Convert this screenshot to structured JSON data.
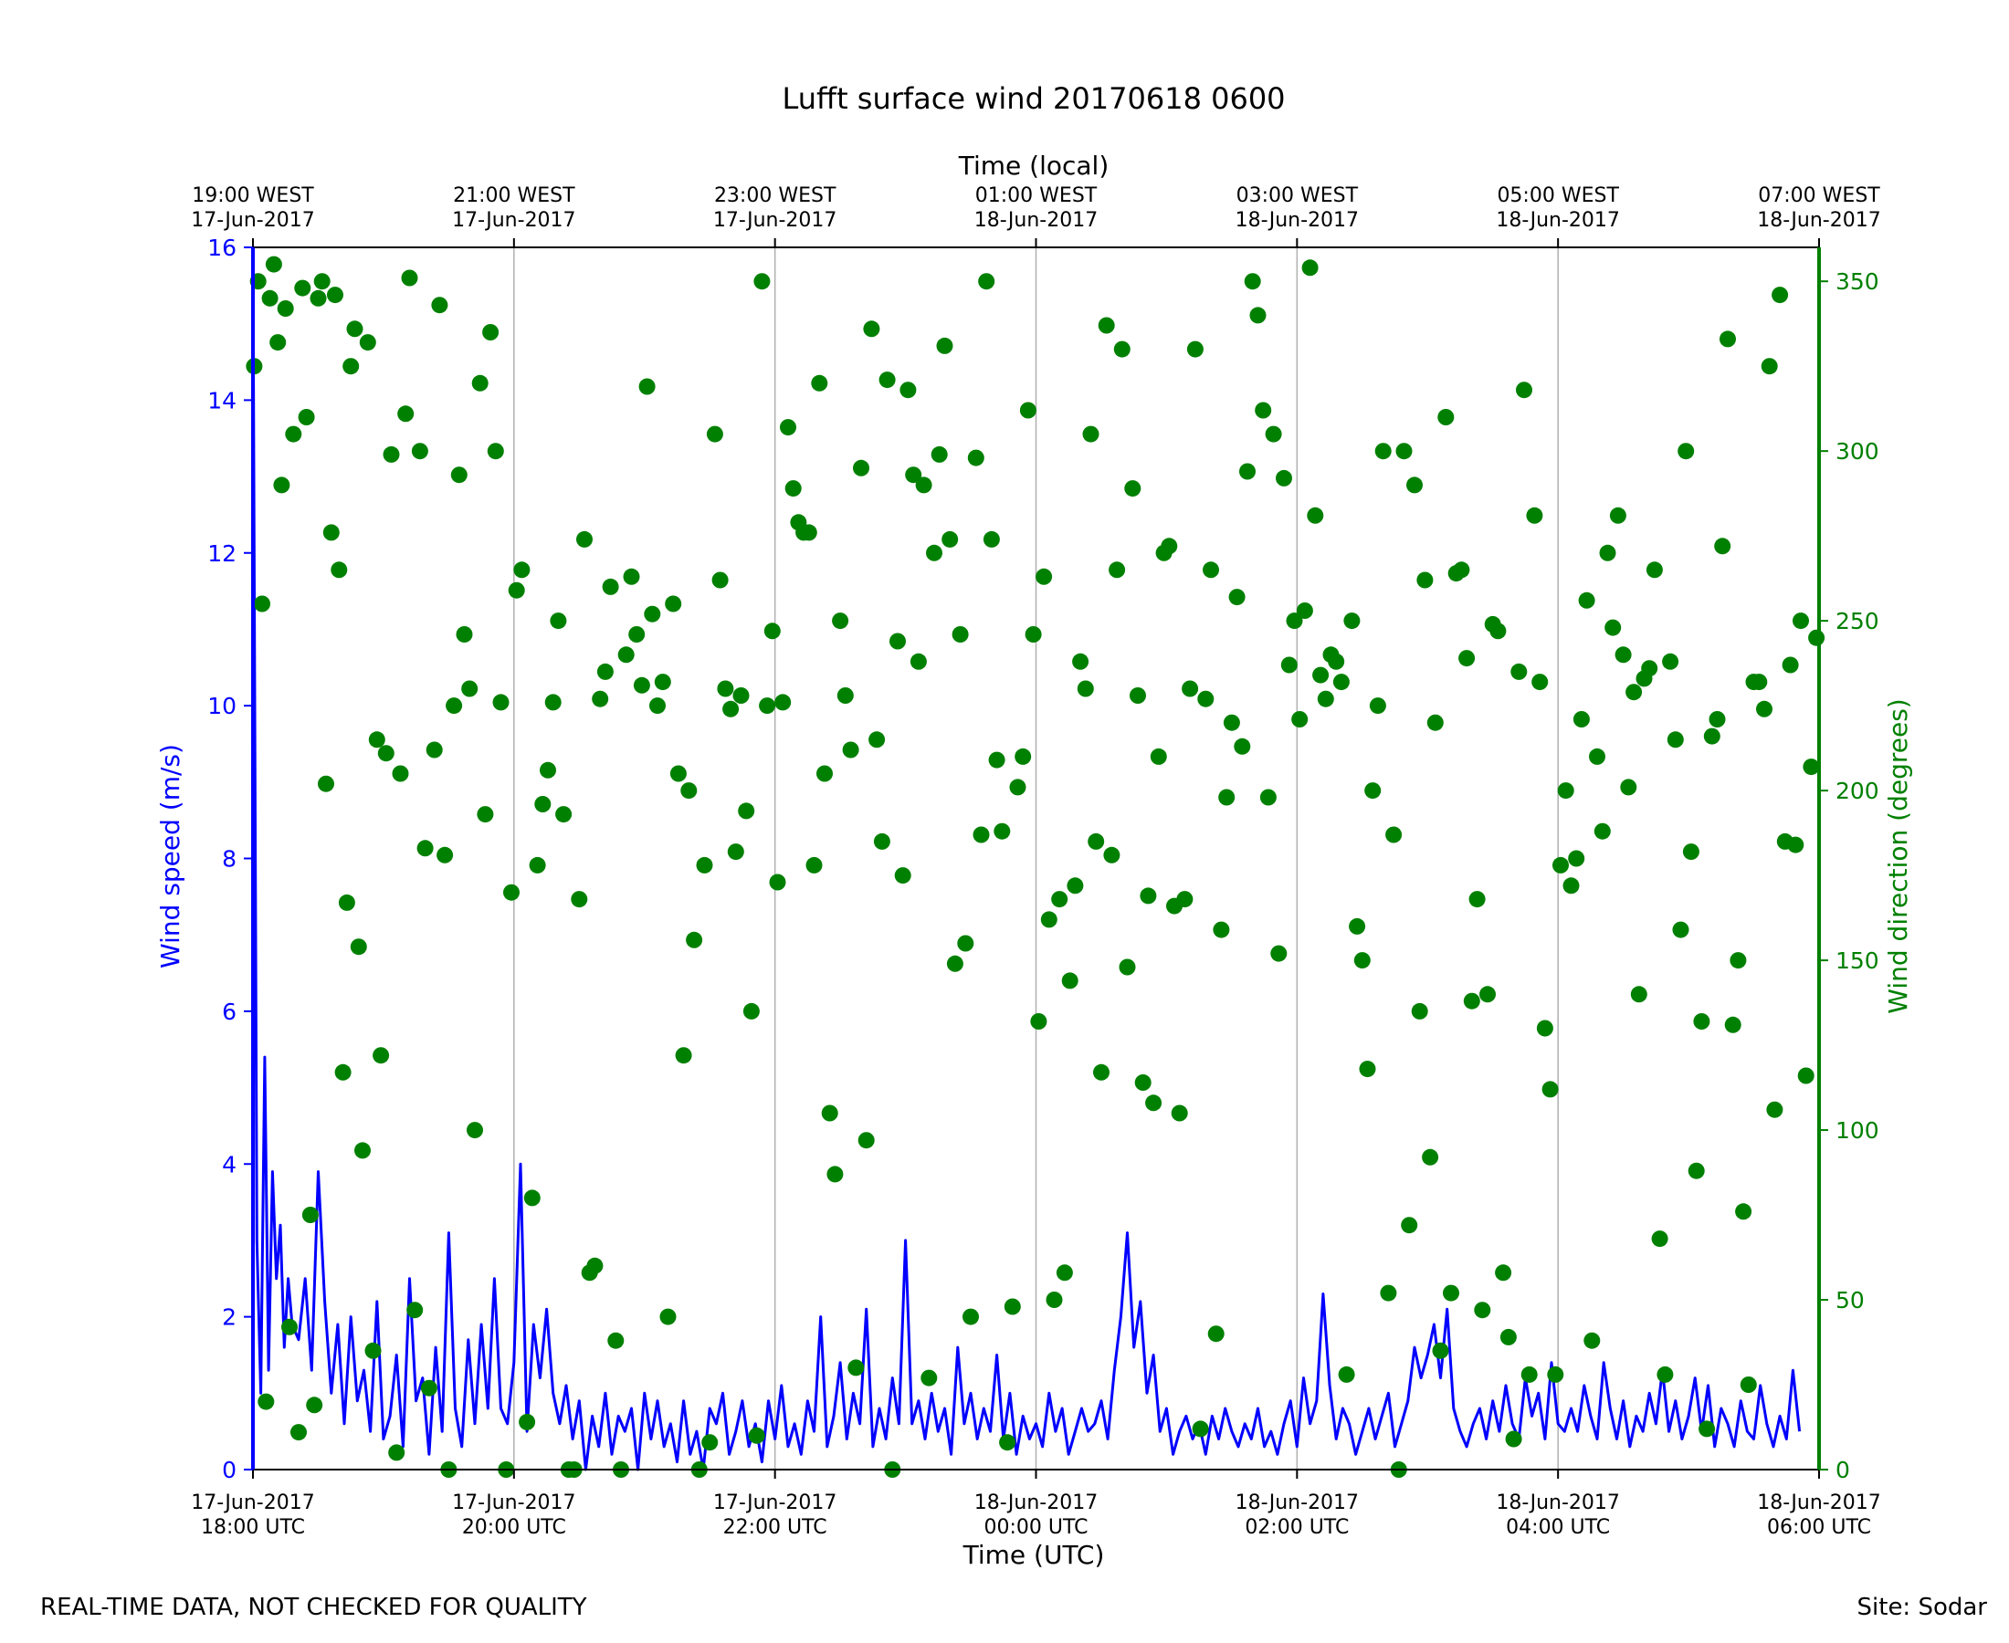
{
  "chart_data": {
    "type": "line+scatter",
    "title": "Lufft surface wind 20170618 0600",
    "xlabel_bottom": "Time (UTC)",
    "xlabel_top": "Time (local)",
    "ylabel_left": "Wind speed (m/s)",
    "ylabel_right": "Wind direction (degrees)",
    "x_range": [
      "2017-06-17 18:00 UTC",
      "2017-06-18 06:00 UTC"
    ],
    "ylim_left": [
      0,
      16
    ],
    "ylim_right": [
      0,
      360
    ],
    "grid": "vertical lines at 2-hour ticks",
    "bottom_ticks": [
      {
        "date": "17-Jun-2017",
        "time": "18:00 UTC"
      },
      {
        "date": "17-Jun-2017",
        "time": "20:00 UTC"
      },
      {
        "date": "17-Jun-2017",
        "time": "22:00 UTC"
      },
      {
        "date": "18-Jun-2017",
        "time": "00:00 UTC"
      },
      {
        "date": "18-Jun-2017",
        "time": "02:00 UTC"
      },
      {
        "date": "18-Jun-2017",
        "time": "04:00 UTC"
      },
      {
        "date": "18-Jun-2017",
        "time": "06:00 UTC"
      }
    ],
    "top_ticks": [
      {
        "time": "19:00 WEST",
        "date": "17-Jun-2017"
      },
      {
        "time": "21:00 WEST",
        "date": "17-Jun-2017"
      },
      {
        "time": "23:00 WEST",
        "date": "17-Jun-2017"
      },
      {
        "time": "01:00 WEST",
        "date": "18-Jun-2017"
      },
      {
        "time": "03:00 WEST",
        "date": "18-Jun-2017"
      },
      {
        "time": "05:00 WEST",
        "date": "18-Jun-2017"
      },
      {
        "time": "07:00 WEST",
        "date": "18-Jun-2017"
      }
    ],
    "left_ticks": [
      "0",
      "2",
      "4",
      "6",
      "8",
      "10",
      "12",
      "14",
      "16"
    ],
    "right_ticks": [
      "0",
      "50",
      "100",
      "150",
      "200",
      "250",
      "300",
      "350"
    ],
    "colors": {
      "speed": "#0000ff",
      "direction": "#008000",
      "grid": "#b0b0b0",
      "axis": "#000000"
    },
    "series": [
      {
        "kind": "wind speed line",
        "hours_since_start": [
          0.0,
          0.03,
          0.06,
          0.09,
          0.12,
          0.15,
          0.18,
          0.21,
          0.24,
          0.27,
          0.3,
          0.35,
          0.4,
          0.45,
          0.5,
          0.55,
          0.6,
          0.65,
          0.7,
          0.75,
          0.8,
          0.85,
          0.9,
          0.95,
          1.0,
          1.05,
          1.1,
          1.15,
          1.2,
          1.25,
          1.3,
          1.35,
          1.4,
          1.45,
          1.5,
          1.55,
          1.6,
          1.65,
          1.7,
          1.75,
          1.8,
          1.85,
          1.9,
          1.95,
          2.0,
          2.05,
          2.1,
          2.15,
          2.2,
          2.25,
          2.3,
          2.35,
          2.4,
          2.45,
          2.5,
          2.55,
          2.6,
          2.65,
          2.7,
          2.75,
          2.8,
          2.85,
          2.9,
          2.95,
          3.0,
          3.05,
          3.1,
          3.15,
          3.2,
          3.25,
          3.3,
          3.35,
          3.4,
          3.45,
          3.5,
          3.55,
          3.6,
          3.65,
          3.7,
          3.75,
          3.8,
          3.85,
          3.9,
          3.95,
          4.0,
          4.05,
          4.1,
          4.15,
          4.2,
          4.25,
          4.3,
          4.35,
          4.4,
          4.45,
          4.5,
          4.55,
          4.6,
          4.65,
          4.7,
          4.75,
          4.8,
          4.85,
          4.9,
          4.95,
          5.0,
          5.05,
          5.1,
          5.15,
          5.2,
          5.25,
          5.3,
          5.35,
          5.4,
          5.45,
          5.5,
          5.55,
          5.6,
          5.65,
          5.7,
          5.75,
          5.8,
          5.85,
          5.9,
          5.95,
          6.0,
          6.05,
          6.1,
          6.15,
          6.2,
          6.25,
          6.3,
          6.35,
          6.4,
          6.45,
          6.5,
          6.55,
          6.6,
          6.65,
          6.7,
          6.75,
          6.8,
          6.85,
          6.9,
          6.95,
          7.0,
          7.05,
          7.1,
          7.15,
          7.2,
          7.25,
          7.3,
          7.35,
          7.4,
          7.45,
          7.5,
          7.55,
          7.6,
          7.65,
          7.7,
          7.75,
          7.8,
          7.85,
          7.9,
          7.95,
          8.0,
          8.05,
          8.1,
          8.15,
          8.2,
          8.25,
          8.3,
          8.35,
          8.4,
          8.45,
          8.5,
          8.55,
          8.6,
          8.65,
          8.7,
          8.75,
          8.8,
          8.85,
          8.9,
          8.95,
          9.0,
          9.05,
          9.1,
          9.15,
          9.2,
          9.25,
          9.3,
          9.35,
          9.4,
          9.45,
          9.5,
          9.55,
          9.6,
          9.65,
          9.7,
          9.75,
          9.8,
          9.85,
          9.9,
          9.95,
          10.0,
          10.05,
          10.1,
          10.15,
          10.2,
          10.25,
          10.3,
          10.35,
          10.4,
          10.45,
          10.5,
          10.55,
          10.6,
          10.65,
          10.7,
          10.75,
          10.8,
          10.85,
          10.9,
          10.95,
          11.0,
          11.05,
          11.1,
          11.15,
          11.2,
          11.25,
          11.3,
          11.35,
          11.4,
          11.45,
          11.5,
          11.55,
          11.6,
          11.65,
          11.7,
          11.75,
          11.8,
          11.85,
          11.9,
          11.95,
          12.0
        ],
        "speed_ms": [
          16.0,
          3.0,
          1.0,
          5.4,
          1.3,
          3.9,
          2.5,
          3.2,
          1.6,
          2.5,
          1.9,
          1.7,
          2.5,
          1.3,
          3.9,
          2.2,
          1.0,
          1.9,
          0.6,
          2.0,
          0.9,
          1.3,
          0.5,
          2.2,
          0.4,
          0.7,
          1.5,
          0.3,
          2.5,
          0.9,
          1.2,
          0.2,
          1.6,
          0.5,
          3.1,
          0.8,
          0.3,
          1.7,
          0.6,
          1.9,
          0.8,
          2.5,
          0.8,
          0.6,
          1.4,
          4.0,
          0.5,
          1.9,
          1.2,
          2.1,
          1.0,
          0.6,
          1.1,
          0.4,
          0.9,
          0.0,
          0.7,
          0.3,
          1.0,
          0.2,
          0.7,
          0.5,
          0.8,
          0.0,
          1.0,
          0.4,
          0.9,
          0.3,
          0.6,
          0.1,
          0.9,
          0.2,
          0.5,
          0.0,
          0.8,
          0.6,
          1.0,
          0.2,
          0.5,
          0.9,
          0.3,
          0.6,
          0.1,
          0.9,
          0.4,
          1.1,
          0.3,
          0.6,
          0.2,
          0.9,
          0.5,
          2.0,
          0.3,
          0.7,
          1.4,
          0.4,
          1.0,
          0.6,
          2.1,
          0.3,
          0.8,
          0.4,
          1.2,
          0.6,
          3.0,
          0.6,
          0.9,
          0.4,
          1.0,
          0.5,
          0.8,
          0.2,
          1.6,
          0.6,
          1.0,
          0.4,
          0.8,
          0.5,
          1.5,
          0.4,
          1.0,
          0.2,
          0.7,
          0.4,
          0.6,
          0.3,
          1.0,
          0.5,
          0.8,
          0.2,
          0.5,
          0.8,
          0.5,
          0.6,
          0.9,
          0.4,
          1.3,
          2.0,
          3.1,
          1.6,
          2.2,
          1.0,
          1.5,
          0.5,
          0.8,
          0.2,
          0.5,
          0.7,
          0.4,
          0.6,
          0.2,
          0.7,
          0.4,
          0.8,
          0.5,
          0.3,
          0.6,
          0.4,
          0.8,
          0.3,
          0.5,
          0.2,
          0.6,
          0.9,
          0.3,
          1.2,
          0.6,
          0.9,
          2.3,
          1.1,
          0.4,
          0.8,
          0.6,
          0.2,
          0.5,
          0.8,
          0.4,
          0.7,
          1.0,
          0.3,
          0.6,
          0.9,
          1.6,
          1.2,
          1.5,
          1.9,
          1.2,
          2.1,
          0.8,
          0.5,
          0.3,
          0.6,
          0.8,
          0.4,
          0.9,
          0.5,
          1.1,
          0.6,
          0.4,
          1.2,
          0.7,
          1.0,
          0.4,
          1.4,
          0.6,
          0.5,
          0.8,
          0.5,
          1.1,
          0.7,
          0.4,
          1.4,
          0.8,
          0.4,
          0.9,
          0.3,
          0.7,
          0.5,
          1.0,
          0.6,
          1.3,
          0.5,
          0.9,
          0.4,
          0.7,
          1.2,
          0.5,
          1.1,
          0.3,
          0.8,
          0.6,
          0.3,
          0.9,
          0.5,
          0.4,
          1.1,
          0.6,
          0.3,
          0.7,
          0.4,
          1.3,
          0.5
        ]
      },
      {
        "kind": "wind direction scatter",
        "hours_since_start": [
          0.01,
          0.04,
          0.07,
          0.1,
          0.13,
          0.16,
          0.19,
          0.22,
          0.25,
          0.28,
          0.31,
          0.35,
          0.38,
          0.41,
          0.44,
          0.47,
          0.5,
          0.53,
          0.56,
          0.6,
          0.63,
          0.66,
          0.69,
          0.72,
          0.75,
          0.78,
          0.81,
          0.84,
          0.88,
          0.92,
          0.95,
          0.98,
          1.02,
          1.06,
          1.1,
          1.13,
          1.17,
          1.2,
          1.24,
          1.28,
          1.32,
          1.35,
          1.39,
          1.43,
          1.47,
          1.5,
          1.54,
          1.58,
          1.62,
          1.66,
          1.7,
          1.74,
          1.78,
          1.82,
          1.86,
          1.9,
          1.94,
          1.98,
          2.02,
          2.06,
          2.1,
          2.14,
          2.18,
          2.22,
          2.26,
          2.3,
          2.34,
          2.38,
          2.42,
          2.46,
          2.5,
          2.54,
          2.58,
          2.62,
          2.66,
          2.7,
          2.74,
          2.78,
          2.82,
          2.86,
          2.9,
          2.94,
          2.98,
          3.02,
          3.06,
          3.1,
          3.14,
          3.18,
          3.22,
          3.26,
          3.3,
          3.34,
          3.38,
          3.42,
          3.46,
          3.5,
          3.54,
          3.58,
          3.62,
          3.66,
          3.7,
          3.74,
          3.78,
          3.82,
          3.86,
          3.9,
          3.94,
          3.98,
          4.02,
          4.06,
          4.1,
          4.14,
          4.18,
          4.22,
          4.26,
          4.3,
          4.34,
          4.38,
          4.42,
          4.46,
          4.5,
          4.54,
          4.58,
          4.62,
          4.66,
          4.7,
          4.74,
          4.78,
          4.82,
          4.86,
          4.9,
          4.94,
          4.98,
          5.02,
          5.06,
          5.1,
          5.14,
          5.18,
          5.22,
          5.26,
          5.3,
          5.34,
          5.38,
          5.42,
          5.46,
          5.5,
          5.54,
          5.58,
          5.62,
          5.66,
          5.7,
          5.74,
          5.78,
          5.82,
          5.86,
          5.9,
          5.94,
          5.98,
          6.02,
          6.06,
          6.1,
          6.14,
          6.18,
          6.22,
          6.26,
          6.3,
          6.34,
          6.38,
          6.42,
          6.46,
          6.5,
          6.54,
          6.58,
          6.62,
          6.66,
          6.7,
          6.74,
          6.78,
          6.82,
          6.86,
          6.9,
          6.94,
          6.98,
          7.02,
          7.06,
          7.1,
          7.14,
          7.18,
          7.22,
          7.26,
          7.3,
          7.34,
          7.38,
          7.42,
          7.46,
          7.5,
          7.54,
          7.58,
          7.62,
          7.66,
          7.7,
          7.74,
          7.78,
          7.82,
          7.86,
          7.9,
          7.94,
          7.98,
          8.02,
          8.06,
          8.1,
          8.14,
          8.18,
          8.22,
          8.26,
          8.3,
          8.34,
          8.38,
          8.42,
          8.46,
          8.5,
          8.54,
          8.58,
          8.62,
          8.66,
          8.7,
          8.74,
          8.78,
          8.82,
          8.86,
          8.9,
          8.94,
          8.98,
          9.02,
          9.06,
          9.1,
          9.14,
          9.18,
          9.22,
          9.26,
          9.3,
          9.34,
          9.38,
          9.42,
          9.46,
          9.5,
          9.54,
          9.58,
          9.62,
          9.66,
          9.7,
          9.74,
          9.78,
          9.82,
          9.86,
          9.9,
          9.94,
          9.98,
          10.02,
          10.06,
          10.1,
          10.14,
          10.18,
          10.22,
          10.26,
          10.3,
          10.34,
          10.38,
          10.42,
          10.46,
          10.5,
          10.54,
          10.58,
          10.62,
          10.66,
          10.7,
          10.74,
          10.78,
          10.82,
          10.86,
          10.9,
          10.94,
          10.98,
          11.02,
          11.06,
          11.1,
          11.14,
          11.18,
          11.22,
          11.26,
          11.3,
          11.34,
          11.38,
          11.42,
          11.46,
          11.5,
          11.54,
          11.58,
          11.62,
          11.66,
          11.7,
          11.74,
          11.78,
          11.82,
          11.86,
          11.9,
          11.94,
          11.98
        ],
        "direction_deg": [
          325,
          350,
          255,
          20,
          345,
          355,
          332,
          290,
          342,
          42,
          305,
          11,
          348,
          310,
          75,
          19,
          345,
          350,
          202,
          276,
          346,
          265,
          117,
          167,
          325,
          336,
          154,
          94,
          332,
          35,
          215,
          122,
          211,
          299,
          5,
          205,
          311,
          351,
          47,
          300,
          183,
          24,
          212,
          343,
          181,
          0,
          225,
          293,
          246,
          230,
          100,
          320,
          193,
          335,
          300,
          226,
          0,
          170,
          259,
          265,
          14,
          80,
          178,
          196,
          206,
          226,
          250,
          193,
          0,
          0,
          168,
          274,
          58,
          60,
          227,
          235,
          260,
          38,
          0,
          240,
          263,
          246,
          231,
          319,
          252,
          225,
          232,
          45,
          255,
          205,
          122,
          200,
          156,
          0,
          178,
          8,
          305,
          262,
          230,
          224,
          182,
          228,
          194,
          135,
          10,
          350,
          225,
          247,
          173,
          226,
          307,
          289,
          279,
          276,
          276,
          178,
          320,
          205,
          105,
          87,
          250,
          228,
          212,
          30,
          295,
          97,
          336,
          215,
          185,
          321,
          0,
          244,
          175,
          318,
          293,
          238,
          290,
          27,
          270,
          299,
          331,
          274,
          149,
          246,
          155,
          45,
          298,
          187,
          350,
          274,
          209,
          188,
          8,
          48,
          201,
          210,
          312,
          246,
          132,
          263,
          162,
          50,
          168,
          58,
          144,
          172,
          238,
          230,
          305,
          185,
          117,
          337,
          181,
          265,
          330,
          148,
          289,
          228,
          114,
          169,
          108,
          210,
          270,
          272,
          166,
          105,
          168,
          230,
          330,
          12,
          227,
          265,
          40,
          159,
          198,
          220,
          257,
          213,
          294,
          350,
          340,
          312,
          198,
          305,
          152,
          292,
          237,
          250,
          221,
          253,
          354,
          281,
          234,
          227,
          240,
          238,
          232,
          28,
          250,
          160,
          150,
          118,
          200,
          225,
          300,
          52,
          187,
          0,
          300,
          72,
          290,
          135,
          262,
          92,
          220,
          35,
          310,
          52,
          264,
          265,
          239,
          138,
          168,
          47,
          140,
          249,
          247,
          58,
          39,
          9,
          235,
          318,
          28,
          281,
          232,
          130,
          112,
          28,
          178,
          200,
          172,
          180,
          221,
          256,
          38,
          210,
          188,
          270,
          248,
          281,
          240,
          201,
          229,
          140,
          233,
          236,
          265,
          68,
          28,
          238,
          215,
          159,
          300,
          182,
          88,
          132,
          12,
          216,
          221,
          272,
          333,
          131,
          150,
          76,
          25,
          232,
          232,
          224,
          325,
          106,
          346,
          185,
          237,
          184,
          250,
          116,
          207,
          245,
          125,
          40,
          222,
          119,
          247,
          30,
          108,
          231,
          326,
          10,
          191,
          323,
          13
        ]
      }
    ]
  },
  "footer": {
    "left": "REAL-TIME DATA, NOT CHECKED FOR QUALITY",
    "right": "Site: Sodar"
  }
}
